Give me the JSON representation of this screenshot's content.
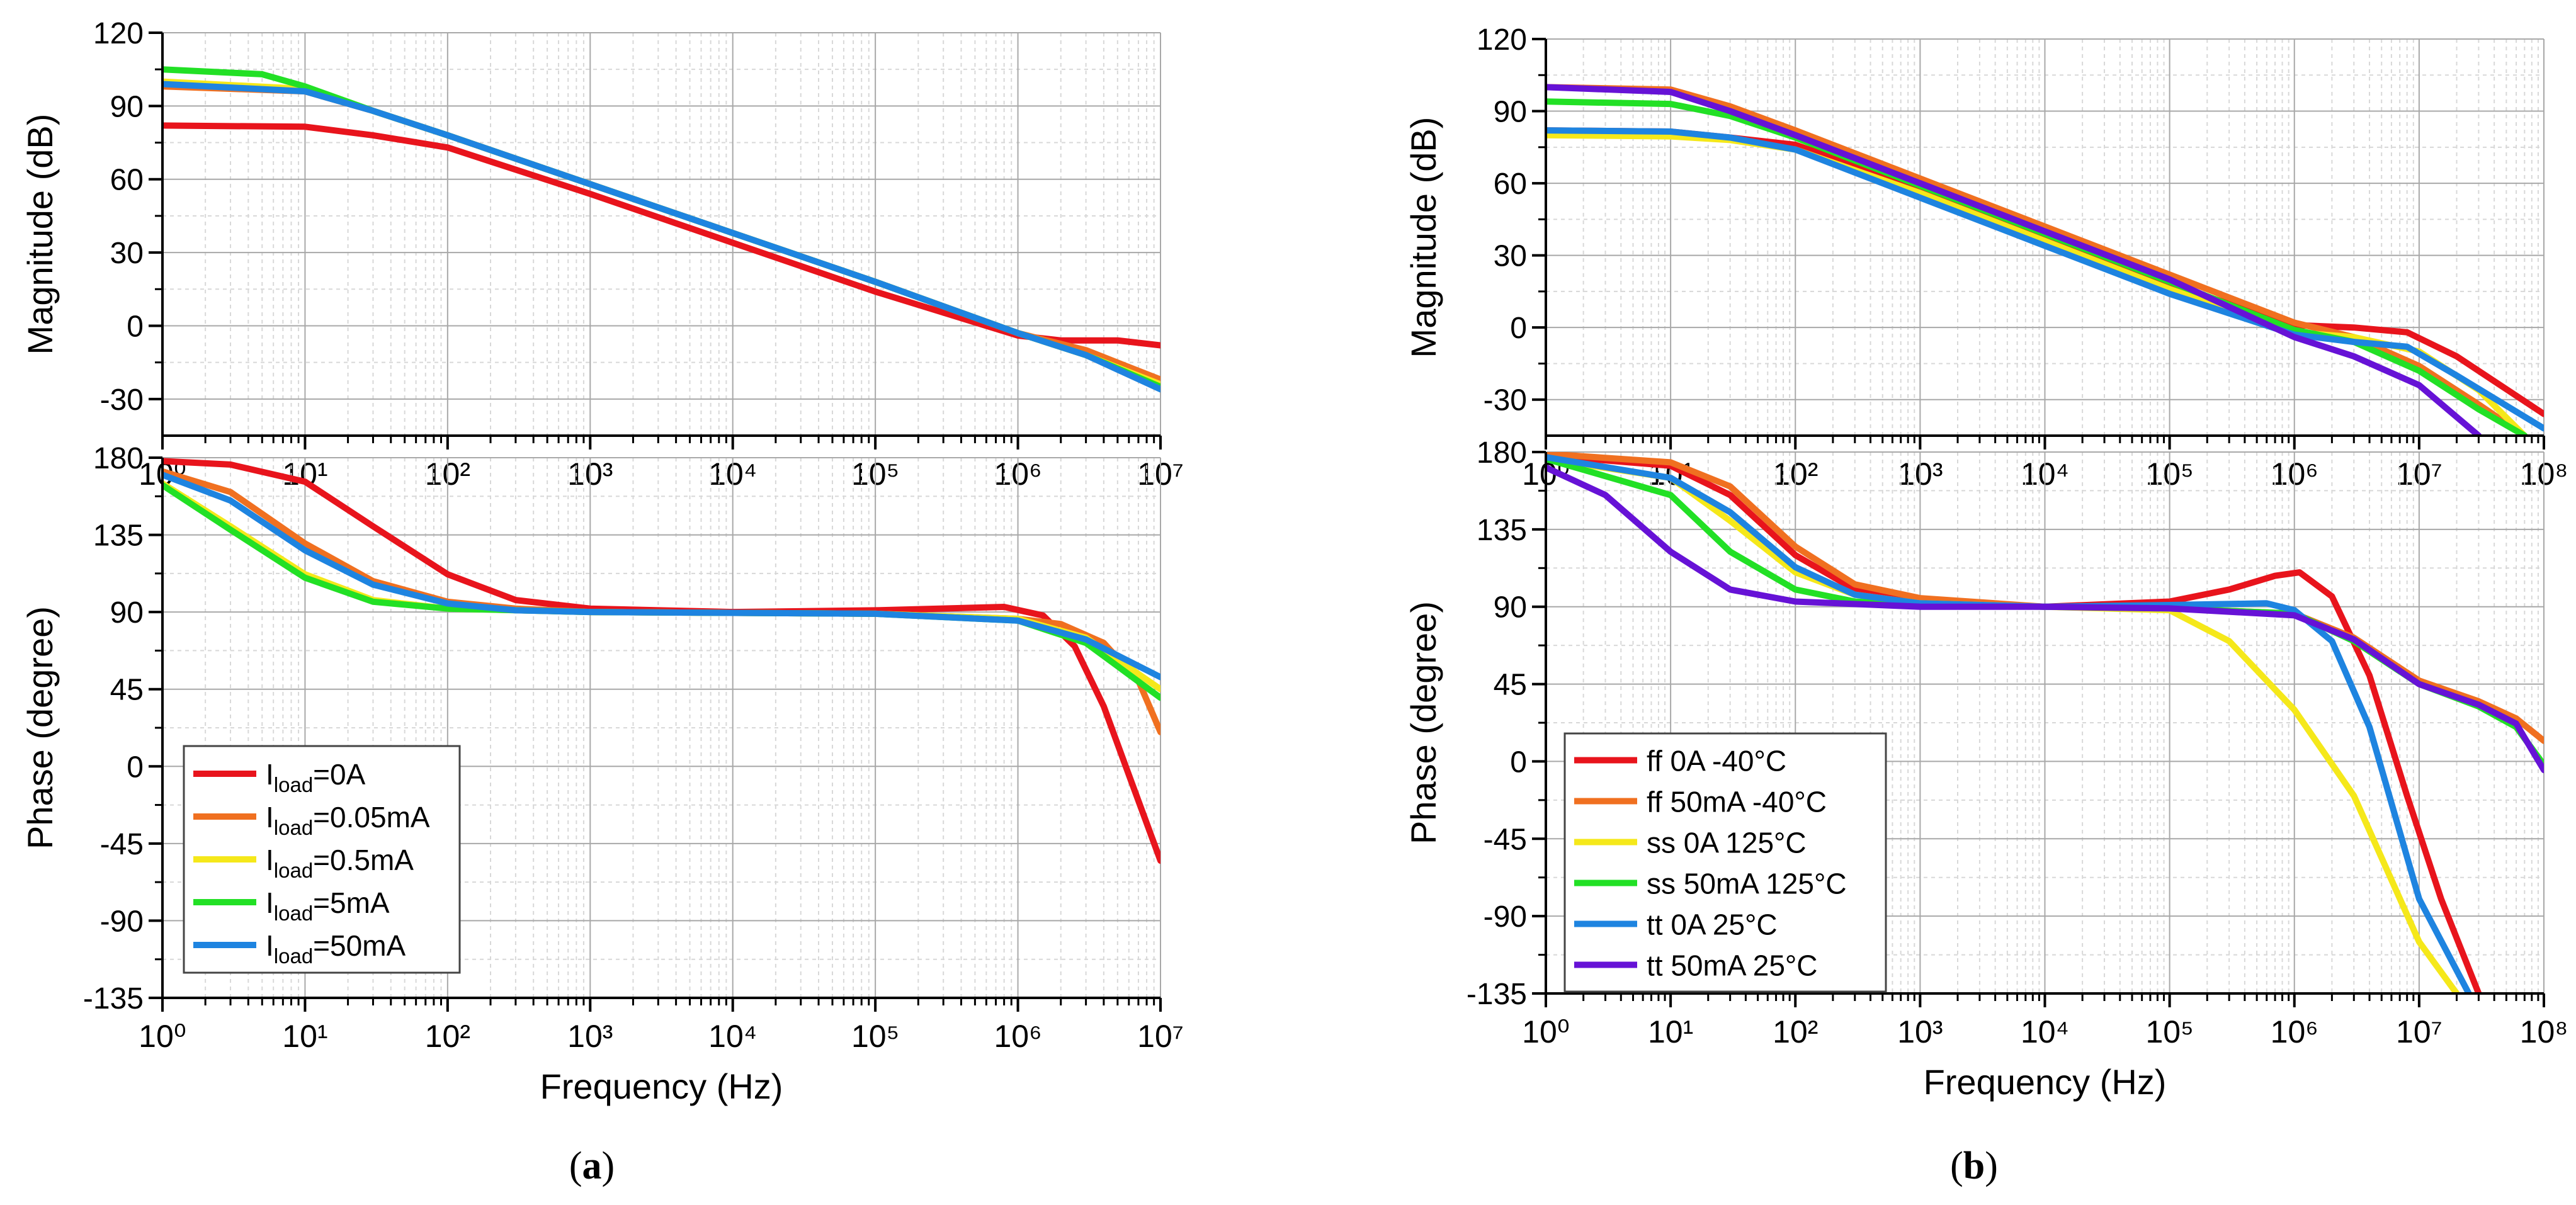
{
  "panels": [
    {
      "label_open": "(",
      "label_letter": "a",
      "label_close": ")"
    },
    {
      "label_open": "(",
      "label_letter": "b",
      "label_close": ")"
    }
  ],
  "chart_data": [
    {
      "id": "a_mag",
      "type": "line",
      "xscale": "log",
      "xlim": [
        1,
        10000000
      ],
      "ylim": [
        -45,
        120
      ],
      "xticks": [
        1,
        10,
        100,
        1000,
        10000,
        100000,
        1000000,
        10000000
      ],
      "yticks": [
        -30,
        0,
        30,
        60,
        90,
        120
      ],
      "xlabel": "",
      "ylabel": "Magnitude (dB)",
      "grid": true,
      "series": [
        {
          "color": "#e8141c",
          "x": [
            1,
            10,
            30,
            100,
            1000,
            10000,
            100000,
            1000000,
            2000000,
            5000000,
            10000000
          ],
          "y": [
            82,
            81.5,
            78,
            73,
            54,
            34,
            14,
            -4,
            -6,
            -6,
            -8
          ]
        },
        {
          "color": "#f07020",
          "x": [
            1,
            10,
            30,
            100,
            1000,
            10000,
            100000,
            1000000,
            3000000,
            10000000
          ],
          "y": [
            98,
            96,
            88,
            78,
            58,
            38,
            18,
            -3,
            -10,
            -22
          ]
        },
        {
          "color": "#f5e81a",
          "x": [
            1,
            10,
            30,
            100,
            1000,
            10000,
            100000,
            1000000,
            3000000,
            10000000
          ],
          "y": [
            100,
            97,
            88,
            78,
            58,
            38,
            18,
            -3,
            -12,
            -24
          ]
        },
        {
          "color": "#22e025",
          "x": [
            1,
            5,
            10,
            30,
            100,
            1000,
            10000,
            100000,
            1000000,
            3000000,
            10000000
          ],
          "y": [
            105,
            103,
            98,
            88,
            78,
            58,
            38,
            18,
            -3,
            -12,
            -25
          ]
        },
        {
          "color": "#1e84e0",
          "x": [
            1,
            10,
            30,
            100,
            1000,
            10000,
            100000,
            1000000,
            3000000,
            10000000
          ],
          "y": [
            99,
            96,
            88,
            78,
            58,
            38,
            18,
            -3,
            -12,
            -26
          ]
        }
      ]
    },
    {
      "id": "a_phase",
      "type": "line",
      "xscale": "log",
      "xlim": [
        1,
        10000000
      ],
      "ylim": [
        -135,
        180
      ],
      "xticks": [
        1,
        10,
        100,
        1000,
        10000,
        100000,
        1000000,
        10000000
      ],
      "yticks": [
        -135,
        -90,
        -45,
        0,
        45,
        90,
        135,
        180
      ],
      "xlabel": "Frequency (Hz)",
      "ylabel": "Phase (degree)",
      "grid": true,
      "legend": {
        "position": "bottom-left",
        "entries": [
          {
            "prefix": "I",
            "sub": "load",
            "suffix": "=0A",
            "color": "#e8141c"
          },
          {
            "prefix": "I",
            "sub": "load",
            "suffix": "=0.05mA",
            "color": "#f07020"
          },
          {
            "prefix": "I",
            "sub": "load",
            "suffix": "=0.5mA",
            "color": "#f5e81a"
          },
          {
            "prefix": "I",
            "sub": "load",
            "suffix": "=5mA",
            "color": "#22e025"
          },
          {
            "prefix": "I",
            "sub": "load",
            "suffix": "=50mA",
            "color": "#1e84e0"
          }
        ]
      },
      "series": [
        {
          "color": "#e8141c",
          "x": [
            1,
            3,
            10,
            30,
            100,
            300,
            1000,
            10000,
            100000,
            800000,
            1500000,
            2500000,
            4000000,
            6000000,
            10000000
          ],
          "y": [
            178,
            176,
            166,
            140,
            112,
            97,
            92,
            90,
            91,
            93,
            88,
            70,
            35,
            -5,
            -55
          ]
        },
        {
          "color": "#f07020",
          "x": [
            1,
            3,
            10,
            30,
            100,
            300,
            1000,
            100000,
            1000000,
            2000000,
            4000000,
            7000000,
            10000000
          ],
          "y": [
            172,
            160,
            130,
            108,
            96,
            92,
            90,
            89,
            86,
            83,
            72,
            50,
            20
          ]
        },
        {
          "color": "#f5e81a",
          "x": [
            1,
            3,
            10,
            30,
            100,
            1000,
            100000,
            1000000,
            3000000,
            10000000
          ],
          "y": [
            165,
            140,
            112,
            97,
            92,
            90,
            89,
            86,
            75,
            45
          ]
        },
        {
          "color": "#22e025",
          "x": [
            1,
            3,
            10,
            30,
            100,
            1000,
            100000,
            1000000,
            3000000,
            10000000
          ],
          "y": [
            164,
            138,
            110,
            96,
            92,
            90,
            89,
            85,
            72,
            40
          ]
        },
        {
          "color": "#1e84e0",
          "x": [
            1,
            3,
            10,
            30,
            100,
            300,
            1000,
            100000,
            1000000,
            3000000,
            10000000
          ],
          "y": [
            170,
            155,
            126,
            106,
            95,
            91,
            90,
            89,
            85,
            74,
            52
          ]
        }
      ]
    },
    {
      "id": "b_mag",
      "type": "line",
      "xscale": "log",
      "xlim": [
        1,
        100000000
      ],
      "ylim": [
        -45,
        120
      ],
      "xticks": [
        1,
        10,
        100,
        1000,
        10000,
        100000,
        1000000,
        10000000,
        100000000
      ],
      "yticks": [
        -30,
        0,
        30,
        60,
        90,
        120
      ],
      "xlabel": "",
      "ylabel": "Magnitude (dB)",
      "grid": true,
      "series": [
        {
          "color": "#e8141c",
          "x": [
            1,
            10,
            30,
            100,
            1000,
            10000,
            100000,
            1000000,
            3000000,
            8000000,
            20000000,
            100000000
          ],
          "y": [
            82,
            81.5,
            79,
            76,
            58,
            38,
            18,
            1,
            0,
            -2,
            -12,
            -36
          ]
        },
        {
          "color": "#f07020",
          "x": [
            1,
            10,
            30,
            100,
            1000,
            10000,
            100000,
            1000000,
            3000000,
            10000000,
            30000000,
            70000000
          ],
          "y": [
            100,
            99,
            92,
            82,
            62,
            42,
            22,
            2,
            -4,
            -16,
            -32,
            -45
          ]
        },
        {
          "color": "#f5e81a",
          "x": [
            1,
            10,
            30,
            100,
            1000,
            10000,
            100000,
            1000000,
            3000000,
            10000000,
            30000000,
            70000000
          ],
          "y": [
            80,
            79.5,
            78,
            74,
            56,
            36,
            16,
            -2,
            -4,
            -10,
            -26,
            -45
          ]
        },
        {
          "color": "#22e025",
          "x": [
            1,
            10,
            30,
            100,
            1000,
            10000,
            100000,
            1000000,
            3000000,
            10000000,
            30000000,
            70000000
          ],
          "y": [
            94,
            93,
            88,
            79,
            59,
            39,
            19,
            -1,
            -6,
            -18,
            -34,
            -45
          ]
        },
        {
          "color": "#1e84e0",
          "x": [
            1,
            10,
            30,
            100,
            1000,
            10000,
            100000,
            1000000,
            3000000,
            8000000,
            20000000,
            100000000
          ],
          "y": [
            82,
            81.5,
            79,
            74,
            54,
            34,
            14,
            -3,
            -6,
            -8,
            -20,
            -42
          ]
        },
        {
          "color": "#6612d6",
          "x": [
            1,
            10,
            30,
            100,
            1000,
            10000,
            100000,
            1000000,
            3000000,
            10000000,
            30000000
          ],
          "y": [
            100,
            98,
            90,
            80,
            60,
            40,
            20,
            -4,
            -12,
            -24,
            -45
          ]
        }
      ]
    },
    {
      "id": "b_phase",
      "type": "line",
      "xscale": "log",
      "xlim": [
        1,
        100000000
      ],
      "ylim": [
        -135,
        180
      ],
      "xticks": [
        1,
        10,
        100,
        1000,
        10000,
        100000,
        1000000,
        10000000,
        100000000
      ],
      "yticks": [
        -135,
        -90,
        -45,
        0,
        45,
        90,
        135,
        180
      ],
      "xlabel": "Frequency (Hz)",
      "ylabel": "Phase (degree)",
      "grid": true,
      "legend": {
        "position": "bottom-left",
        "entries": [
          {
            "prefix": "ff 0A -40°C",
            "color": "#e8141c"
          },
          {
            "prefix": "ff 50mA -40°C",
            "color": "#f07020"
          },
          {
            "prefix": "ss 0A 125°C",
            "color": "#f5e81a"
          },
          {
            "prefix": "ss 50mA 125°C",
            "color": "#22e025"
          },
          {
            "prefix": "tt 0A 25°C",
            "color": "#1e84e0"
          },
          {
            "prefix": "tt 50mA 25°C",
            "color": "#6612d6"
          }
        ]
      },
      "series": [
        {
          "color": "#e8141c",
          "x": [
            1,
            10,
            30,
            100,
            300,
            1000,
            10000,
            100000,
            300000,
            700000,
            1100000,
            2000000,
            4000000,
            8000000,
            15000000,
            30000000
          ],
          "y": [
            178,
            172,
            155,
            120,
            100,
            93,
            90,
            93,
            100,
            108,
            110,
            96,
            50,
            -20,
            -80,
            -135
          ]
        },
        {
          "color": "#f07020",
          "x": [
            1,
            10,
            30,
            100,
            300,
            1000,
            10000,
            100000,
            1000000,
            3000000,
            10000000,
            30000000,
            60000000,
            100000000
          ],
          "y": [
            179,
            174,
            160,
            125,
            103,
            95,
            90,
            89,
            86,
            72,
            47,
            35,
            25,
            12
          ]
        },
        {
          "color": "#f5e81a",
          "x": [
            1,
            10,
            30,
            100,
            300,
            1000,
            10000,
            100000,
            300000,
            1000000,
            3000000,
            10000000,
            20000000
          ],
          "y": [
            176,
            165,
            140,
            110,
            97,
            92,
            90,
            88,
            70,
            30,
            -20,
            -105,
            -135
          ]
        },
        {
          "color": "#22e025",
          "x": [
            1,
            10,
            30,
            100,
            300,
            1000,
            10000,
            100000,
            1000000,
            3000000,
            10000000,
            30000000,
            60000000,
            100000000
          ],
          "y": [
            176,
            155,
            122,
            100,
            93,
            91,
            90,
            89,
            86,
            70,
            45,
            32,
            20,
            -2
          ]
        },
        {
          "color": "#1e84e0",
          "x": [
            1,
            10,
            30,
            100,
            300,
            1000,
            10000,
            100000,
            600000,
            1000000,
            2000000,
            4000000,
            10000000,
            25000000
          ],
          "y": [
            177,
            165,
            145,
            113,
            97,
            92,
            90,
            91,
            92,
            88,
            70,
            20,
            -80,
            -135
          ]
        },
        {
          "color": "#6612d6",
          "x": [
            1,
            3,
            10,
            30,
            100,
            1000,
            10000,
            100000,
            1000000,
            3000000,
            10000000,
            30000000,
            60000000,
            100000000
          ],
          "y": [
            171,
            155,
            122,
            100,
            93,
            90,
            90,
            89,
            85,
            71,
            45,
            33,
            22,
            -5
          ]
        }
      ]
    }
  ]
}
